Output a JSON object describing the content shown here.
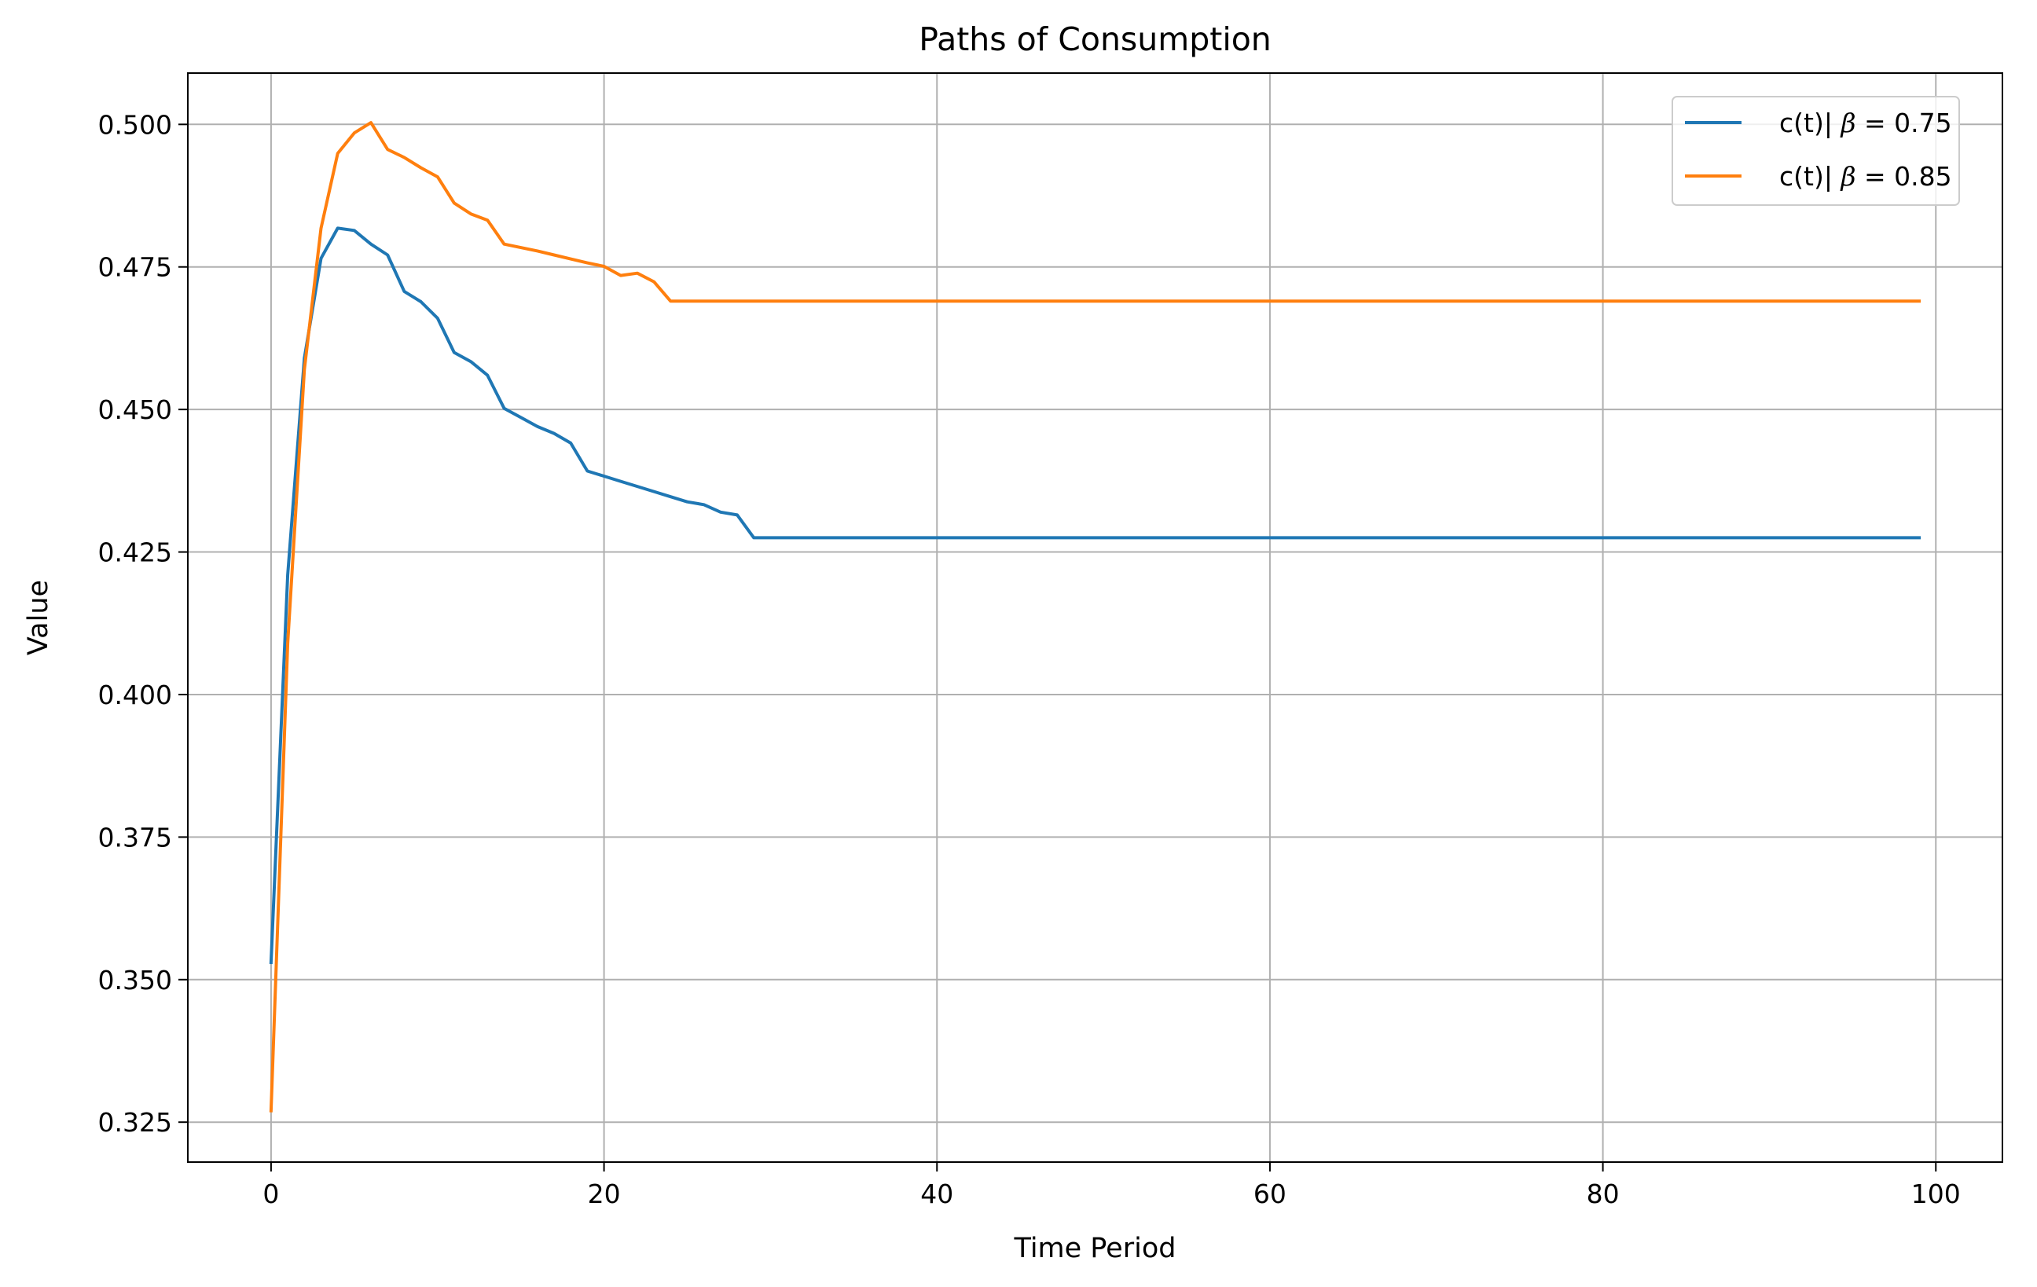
{
  "chart_data": {
    "type": "line",
    "title": "Paths of Consumption",
    "xlabel": "Time Period",
    "ylabel": "Value",
    "xlim": [
      -5,
      104
    ],
    "ylim": [
      0.318,
      0.509
    ],
    "xticks": [
      0,
      20,
      40,
      60,
      80,
      100
    ],
    "yticks": [
      0.325,
      0.35,
      0.375,
      0.4,
      0.425,
      0.45,
      0.475,
      0.5
    ],
    "xtick_labels": [
      "0",
      "20",
      "40",
      "60",
      "80",
      "100"
    ],
    "ytick_labels": [
      "0.325",
      "0.350",
      "0.375",
      "0.400",
      "0.425",
      "0.450",
      "0.475",
      "0.500"
    ],
    "grid": true,
    "legend_position": "top-right",
    "series": [
      {
        "name": "c(t)| β = 0.75",
        "label_prefix": "c(t)| ",
        "label_beta": "β",
        "label_suffix": " = 0.75",
        "color": "#1f77b4",
        "x": [
          0,
          1,
          2,
          3,
          4,
          5,
          6,
          7,
          8,
          9,
          10,
          11,
          12,
          13,
          14,
          15,
          16,
          17,
          18,
          19,
          20,
          21,
          22,
          23,
          24,
          25,
          26,
          27,
          28,
          29,
          99
        ],
        "y": [
          0.353,
          0.421,
          0.459,
          0.4765,
          0.4818,
          0.4814,
          0.479,
          0.4771,
          0.4707,
          0.4689,
          0.466,
          0.46,
          0.4584,
          0.456,
          0.4502,
          0.4486,
          0.447,
          0.4458,
          0.4441,
          0.4392,
          0.4383,
          0.4374,
          0.4365,
          0.4356,
          0.4347,
          0.4338,
          0.4333,
          0.432,
          0.4315,
          0.4275,
          0.4275
        ]
      },
      {
        "name": "c(t)| β = 0.85",
        "label_prefix": "c(t)| ",
        "label_beta": "β",
        "label_suffix": " = 0.85",
        "color": "#ff7f0e",
        "x": [
          0,
          1,
          2,
          3,
          4,
          5,
          6,
          7,
          8,
          9,
          10,
          11,
          12,
          13,
          14,
          15,
          16,
          17,
          18,
          19,
          20,
          21,
          22,
          23,
          24,
          99
        ],
        "y": [
          0.327,
          0.409,
          0.457,
          0.4818,
          0.4949,
          0.4985,
          0.5003,
          0.4956,
          0.4942,
          0.4924,
          0.4908,
          0.4862,
          0.4843,
          0.4832,
          0.479,
          0.4784,
          0.4778,
          0.4771,
          0.4764,
          0.4757,
          0.4751,
          0.4735,
          0.4739,
          0.4724,
          0.469,
          0.469
        ]
      }
    ]
  }
}
